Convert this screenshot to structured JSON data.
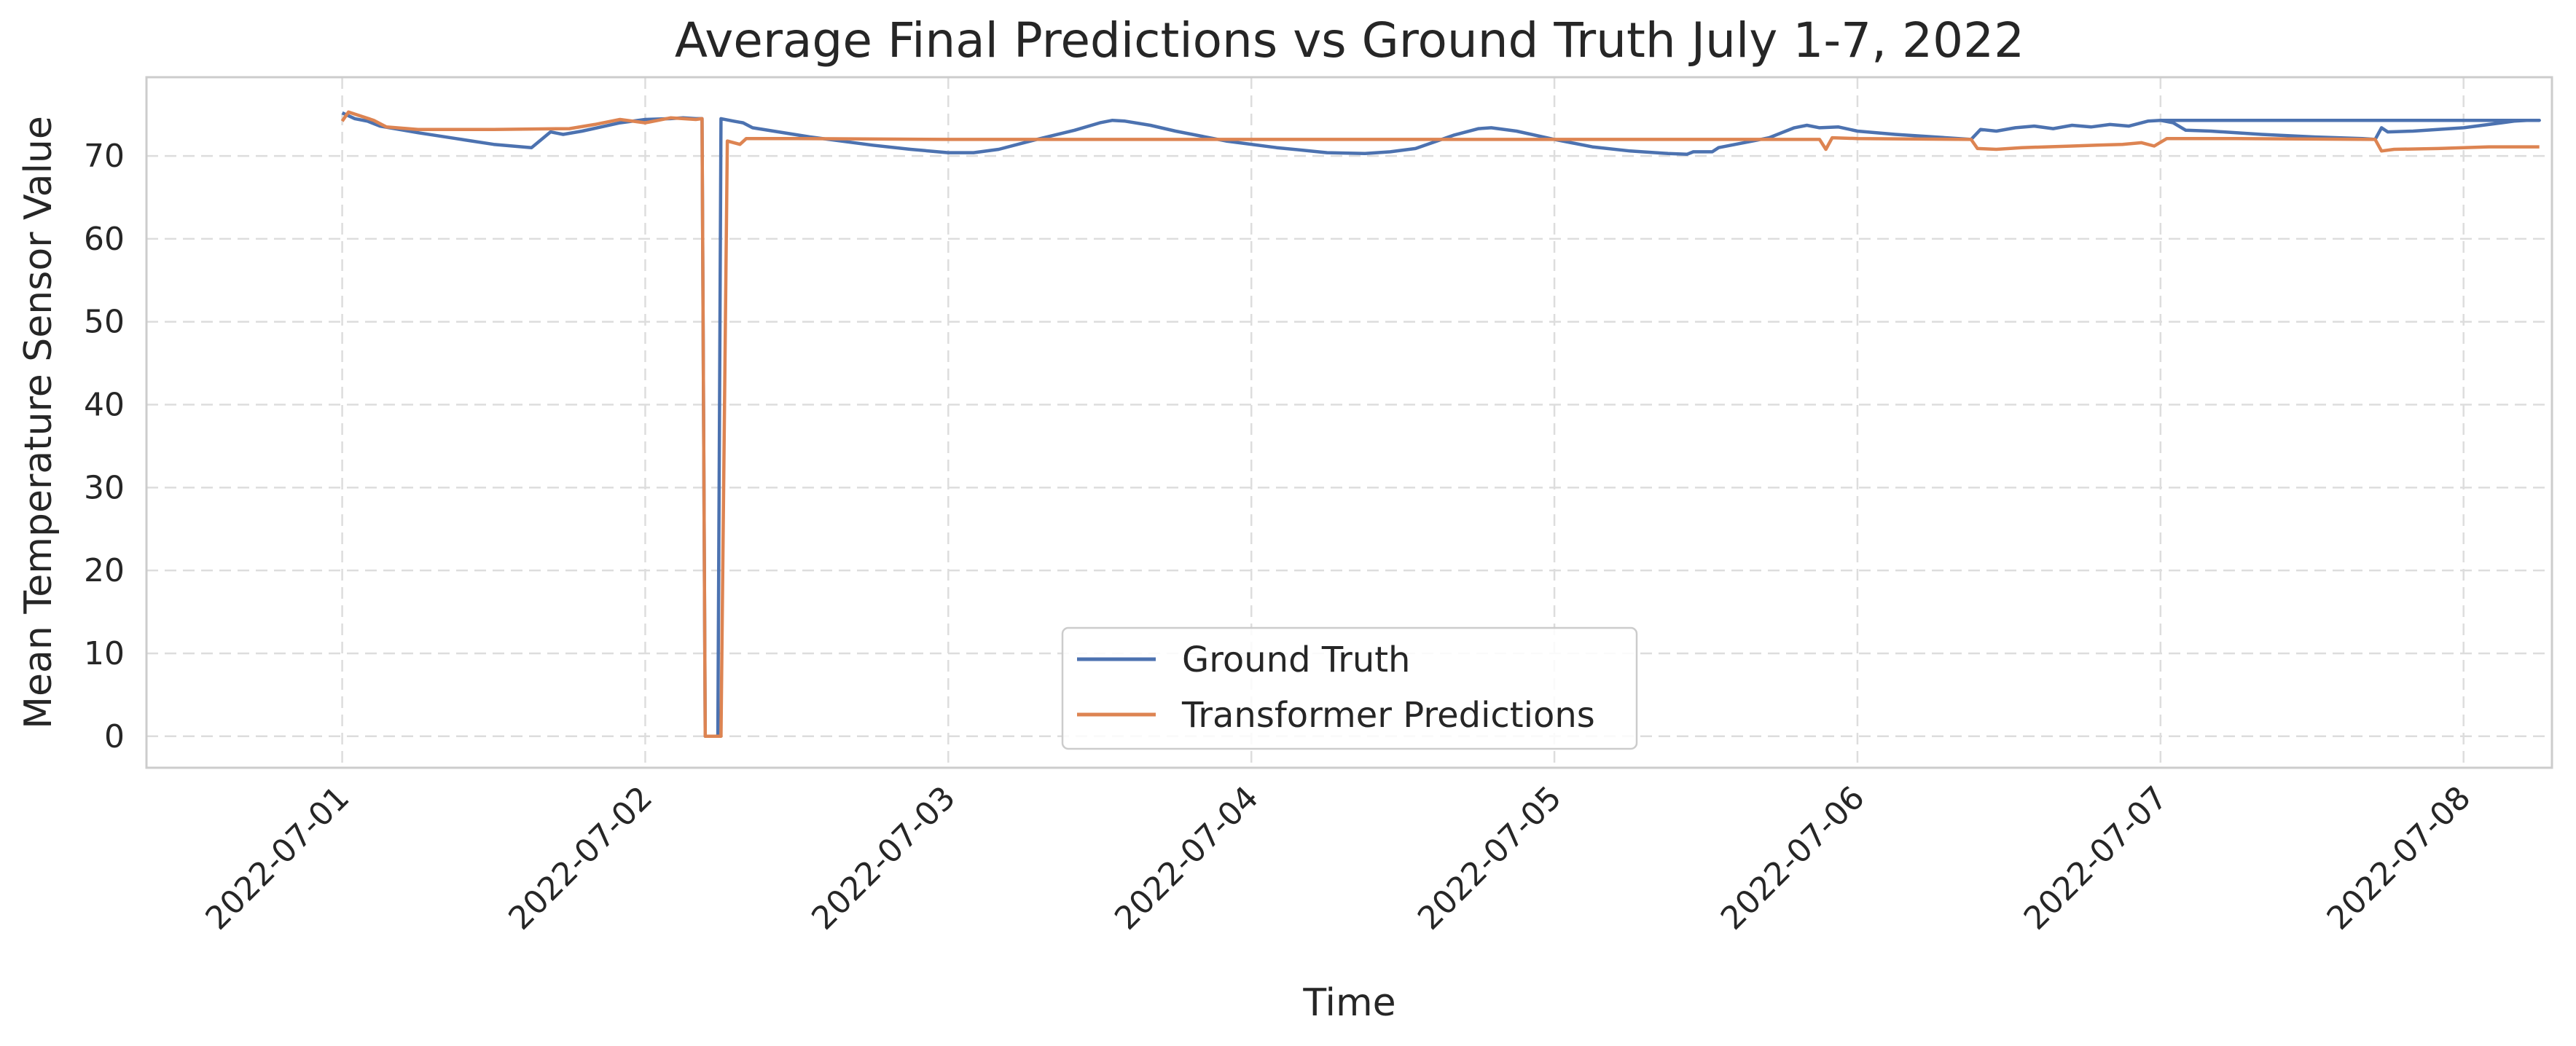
{
  "chart_data": {
    "type": "line",
    "title": "Average Final Predictions vs Ground Truth July 1-7, 2022",
    "xlabel": "Time",
    "ylabel": "Mean Temperature Sensor Value",
    "x_tick_labels": [
      "2022-07-01",
      "2022-07-02",
      "2022-07-03",
      "2022-07-04",
      "2022-07-05",
      "2022-07-06",
      "2022-07-07",
      "2022-07-08"
    ],
    "y_ticks": [
      0,
      10,
      20,
      30,
      40,
      50,
      60,
      70
    ],
    "xlim": [
      "2022-06-30 08:30",
      "2022-07-08 07:00"
    ],
    "ylim": [
      -3.8,
      79.5
    ],
    "grid": true,
    "legend_placement": "lower-center",
    "series": [
      {
        "name": "Ground Truth",
        "color": "#4c72b0",
        "points": [
          [
            "2022-07-01 00:00",
            75.2
          ],
          [
            "2022-07-01 01:00",
            74.5
          ],
          [
            "2022-07-01 02:00",
            74.2
          ],
          [
            "2022-07-01 03:00",
            73.6
          ],
          [
            "2022-07-01 06:00",
            72.8
          ],
          [
            "2022-07-01 09:00",
            72.1
          ],
          [
            "2022-07-01 12:00",
            71.4
          ],
          [
            "2022-07-01 15:00",
            71.0
          ],
          [
            "2022-07-01 16:30",
            72.9
          ],
          [
            "2022-07-01 17:30",
            72.6
          ],
          [
            "2022-07-01 19:00",
            73.0
          ],
          [
            "2022-07-01 20:30",
            73.5
          ],
          [
            "2022-07-01 22:00",
            74.0
          ],
          [
            "2022-07-02 00:00",
            74.4
          ],
          [
            "2022-07-02 02:00",
            74.5
          ],
          [
            "2022-07-02 03:00",
            74.6
          ],
          [
            "2022-07-02 04:00",
            74.5
          ],
          [
            "2022-07-02 04:30",
            74.5
          ],
          [
            "2022-07-02 04:45",
            0
          ],
          [
            "2022-07-02 05:45",
            0
          ],
          [
            "2022-07-02 06:00",
            74.5
          ],
          [
            "2022-07-02 07:00",
            74.2
          ],
          [
            "2022-07-02 07:45",
            74.0
          ],
          [
            "2022-07-02 08:30",
            73.4
          ],
          [
            "2022-07-02 13:00",
            72.3
          ],
          [
            "2022-07-02 18:00",
            71.3
          ],
          [
            "2022-07-02 21:00",
            70.8
          ],
          [
            "2022-07-03 00:00",
            70.4
          ],
          [
            "2022-07-03 02:00",
            70.4
          ],
          [
            "2022-07-03 04:00",
            70.8
          ],
          [
            "2022-07-03 07:00",
            72.0
          ],
          [
            "2022-07-03 10:00",
            73.1
          ],
          [
            "2022-07-03 12:00",
            74.0
          ],
          [
            "2022-07-03 13:00",
            74.3
          ],
          [
            "2022-07-03 14:00",
            74.2
          ],
          [
            "2022-07-03 16:00",
            73.7
          ],
          [
            "2022-07-03 18:00",
            73.0
          ],
          [
            "2022-07-03 22:00",
            71.8
          ],
          [
            "2022-07-04 02:00",
            71.0
          ],
          [
            "2022-07-04 06:00",
            70.4
          ],
          [
            "2022-07-04 09:00",
            70.3
          ],
          [
            "2022-07-04 11:00",
            70.5
          ],
          [
            "2022-07-04 13:00",
            70.9
          ],
          [
            "2022-07-04 16:00",
            72.5
          ],
          [
            "2022-07-04 18:00",
            73.3
          ],
          [
            "2022-07-04 19:00",
            73.4
          ],
          [
            "2022-07-04 21:00",
            73.0
          ],
          [
            "2022-07-05 00:00",
            72.0
          ],
          [
            "2022-07-05 03:00",
            71.1
          ],
          [
            "2022-07-05 06:00",
            70.6
          ],
          [
            "2022-07-05 09:00",
            70.3
          ],
          [
            "2022-07-05 10:30",
            70.2
          ],
          [
            "2022-07-05 11:00",
            70.5
          ],
          [
            "2022-07-05 12:30",
            70.5
          ],
          [
            "2022-07-05 13:00",
            71.0
          ],
          [
            "2022-07-05 15:00",
            71.6
          ],
          [
            "2022-07-05 17:00",
            72.2
          ],
          [
            "2022-07-05 18:00",
            72.8
          ],
          [
            "2022-07-05 19:00",
            73.4
          ],
          [
            "2022-07-05 20:00",
            73.7
          ],
          [
            "2022-07-05 21:00",
            73.4
          ],
          [
            "2022-07-05 22:30",
            73.5
          ],
          [
            "2022-07-06 00:00",
            73.0
          ],
          [
            "2022-07-06 03:00",
            72.6
          ],
          [
            "2022-07-06 08:00",
            72.1
          ],
          [
            "2022-07-06 09:00",
            72.0
          ],
          [
            "2022-07-06 09:45",
            73.2
          ],
          [
            "2022-07-06 11:00",
            73.0
          ],
          [
            "2022-07-06 12:30",
            73.4
          ],
          [
            "2022-07-06 14:00",
            73.6
          ],
          [
            "2022-07-06 15:30",
            73.3
          ],
          [
            "2022-07-06 17:00",
            73.7
          ],
          [
            "2022-07-06 18:30",
            73.5
          ],
          [
            "2022-07-06 20:00",
            73.8
          ],
          [
            "2022-07-06 21:30",
            73.6
          ],
          [
            "2022-07-06 23:00",
            74.2
          ],
          [
            "2022-07-07 00:00",
            74.3
          ],
          [
            "2022-07-07 01:00",
            74.0
          ],
          [
            "2022-07-07 02:00",
            73.1
          ],
          [
            "2022-07-07 04:00",
            73.0
          ],
          [
            "2022-07-07 08:00",
            72.6
          ],
          [
            "2022-07-07 12:00",
            72.3
          ],
          [
            "2022-07-07 16:00",
            72.1
          ],
          [
            "2022-07-07 17:00",
            72.0
          ],
          [
            "2022-07-07 17:30",
            73.4
          ],
          [
            "2022-07-07 18:00",
            72.9
          ],
          [
            "2022-07-07 20:00",
            73.0
          ],
          [
            "2022-07-08 00:00",
            73.4
          ],
          [
            "2022-07-08 03:00",
            74.0
          ],
          [
            "2022-07-08 04:00",
            74.2
          ],
          [
            "2022-07-08 05:00",
            74.3
          ],
          [
            "2022-07-08 06:00",
            74.3
          ],
          [
            "2022-07-07 23:59",
            74.3
          ],
          [
            "2022-07-07 00:00",
            74.3
          ]
        ]
      },
      {
        "name": "Transformer Predictions",
        "color": "#dd8452",
        "points": [
          [
            "2022-07-01 00:00",
            74.2
          ],
          [
            "2022-07-01 00:30",
            75.3
          ],
          [
            "2022-07-01 01:30",
            74.8
          ],
          [
            "2022-07-01 02:30",
            74.3
          ],
          [
            "2022-07-01 03:30",
            73.5
          ],
          [
            "2022-07-01 06:00",
            73.2
          ],
          [
            "2022-07-01 12:00",
            73.2
          ],
          [
            "2022-07-01 18:00",
            73.3
          ],
          [
            "2022-07-01 20:00",
            73.8
          ],
          [
            "2022-07-01 22:00",
            74.4
          ],
          [
            "2022-07-02 00:00",
            74.0
          ],
          [
            "2022-07-02 02:00",
            74.6
          ],
          [
            "2022-07-02 04:00",
            74.4
          ],
          [
            "2022-07-02 04:30",
            74.5
          ],
          [
            "2022-07-02 04:45",
            0
          ],
          [
            "2022-07-02 06:00",
            0
          ],
          [
            "2022-07-02 06:30",
            71.8
          ],
          [
            "2022-07-02 07:30",
            71.4
          ],
          [
            "2022-07-02 08:00",
            72.1
          ],
          [
            "2022-07-02 12:00",
            72.1
          ],
          [
            "2022-07-03 00:00",
            72.0
          ],
          [
            "2022-07-04 00:00",
            72.0
          ],
          [
            "2022-07-05 00:00",
            72.0
          ],
          [
            "2022-07-05 21:00",
            72.0
          ],
          [
            "2022-07-05 21:30",
            70.8
          ],
          [
            "2022-07-05 22:00",
            72.2
          ],
          [
            "2022-07-06 00:00",
            72.1
          ],
          [
            "2022-07-06 09:00",
            72.0
          ],
          [
            "2022-07-06 09:30",
            70.9
          ],
          [
            "2022-07-06 11:00",
            70.8
          ],
          [
            "2022-07-06 13:00",
            71.0
          ],
          [
            "2022-07-06 15:00",
            71.1
          ],
          [
            "2022-07-06 17:00",
            71.2
          ],
          [
            "2022-07-06 19:00",
            71.3
          ],
          [
            "2022-07-06 21:00",
            71.4
          ],
          [
            "2022-07-06 22:30",
            71.6
          ],
          [
            "2022-07-06 23:30",
            71.2
          ],
          [
            "2022-07-07 00:30",
            72.1
          ],
          [
            "2022-07-07 06:00",
            72.1
          ],
          [
            "2022-07-07 17:00",
            72.0
          ],
          [
            "2022-07-07 17:30",
            70.6
          ],
          [
            "2022-07-07 18:30",
            70.8
          ],
          [
            "2022-07-07 22:00",
            70.9
          ],
          [
            "2022-07-08 02:00",
            71.1
          ],
          [
            "2022-07-08 06:00",
            71.1
          ]
        ]
      }
    ]
  }
}
